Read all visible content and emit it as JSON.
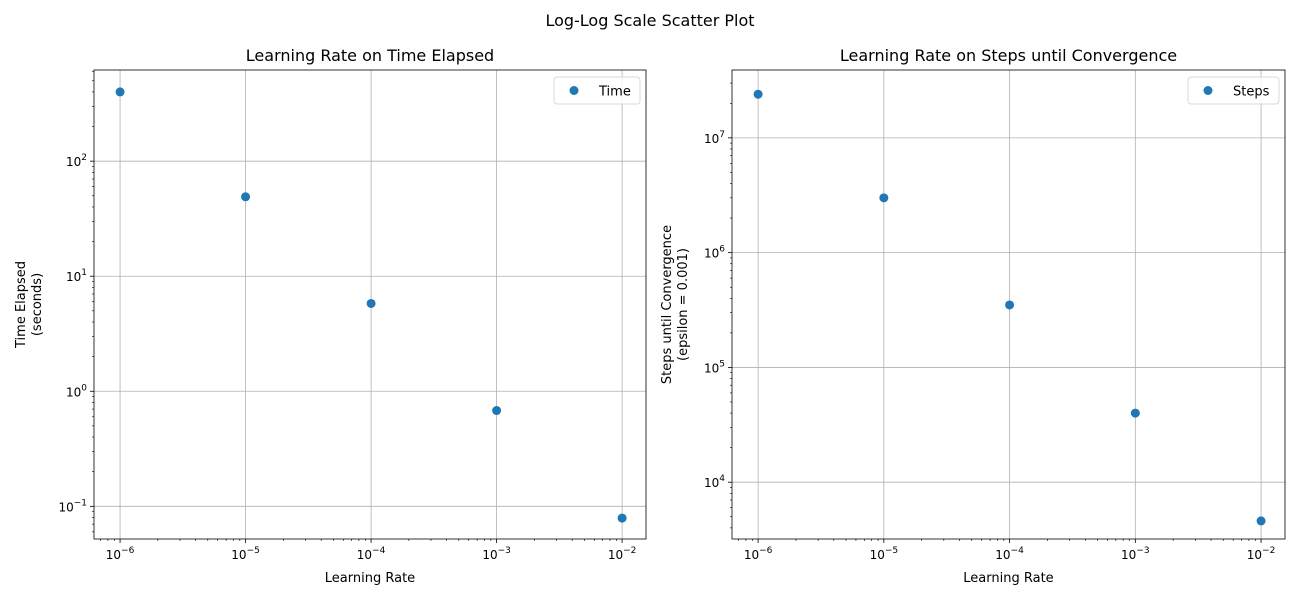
{
  "figure": {
    "title": "Log-Log Scale Scatter Plot"
  },
  "colors": {
    "marker": "#1f77b4",
    "grid": "#b0b0b0",
    "axis": "#000000"
  },
  "chart_data": [
    {
      "type": "scatter",
      "title": "Learning Rate on Time Elapsed",
      "xlabel": "Learning Rate",
      "ylabel": [
        "Time Elapsed",
        "(seconds)"
      ],
      "xscale": "log",
      "yscale": "log",
      "xlim": [
        6.2e-07,
        0.0155
      ],
      "ylim": [
        0.052,
        620
      ],
      "xticks": [
        {
          "value": 1e-06,
          "exp": "−6"
        },
        {
          "value": 1e-05,
          "exp": "−5"
        },
        {
          "value": 0.0001,
          "exp": "−4"
        },
        {
          "value": 0.001,
          "exp": "−3"
        },
        {
          "value": 0.01,
          "exp": "−2"
        }
      ],
      "yticks": [
        {
          "value": 0.1,
          "exp": "−1"
        },
        {
          "value": 1,
          "exp": "0"
        },
        {
          "value": 10,
          "exp": "1"
        },
        {
          "value": 100,
          "exp": "2"
        }
      ],
      "grid": true,
      "legend": {
        "placement": "upper right",
        "entries": [
          "Time"
        ]
      },
      "series": [
        {
          "name": "Time",
          "points": [
            [
              1e-06,
              400
            ],
            [
              1e-05,
              49
            ],
            [
              0.0001,
              5.8
            ],
            [
              0.001,
              0.68
            ],
            [
              0.01,
              0.079
            ]
          ]
        }
      ]
    },
    {
      "type": "scatter",
      "title": "Learning Rate on Steps until Convergence",
      "xlabel": "Learning Rate",
      "ylabel": [
        "Steps until Convergence",
        "(epsilon = 0.001)"
      ],
      "xscale": "log",
      "yscale": "log",
      "xlim": [
        6.2e-07,
        0.0155
      ],
      "ylim": [
        3200,
        39000000.0
      ],
      "xticks": [
        {
          "value": 1e-06,
          "exp": "−6"
        },
        {
          "value": 1e-05,
          "exp": "−5"
        },
        {
          "value": 0.0001,
          "exp": "−4"
        },
        {
          "value": 0.001,
          "exp": "−3"
        },
        {
          "value": 0.01,
          "exp": "−2"
        }
      ],
      "yticks": [
        {
          "value": 10000,
          "exp": "4"
        },
        {
          "value": 100000,
          "exp": "5"
        },
        {
          "value": 1000000,
          "exp": "6"
        },
        {
          "value": 10000000,
          "exp": "7"
        }
      ],
      "grid": true,
      "legend": {
        "placement": "upper right",
        "entries": [
          "Steps"
        ]
      },
      "series": [
        {
          "name": "Steps",
          "points": [
            [
              1e-06,
              24000000
            ],
            [
              1e-05,
              3000000
            ],
            [
              0.0001,
              350000
            ],
            [
              0.001,
              40000
            ],
            [
              0.01,
              4600
            ]
          ]
        }
      ]
    }
  ]
}
